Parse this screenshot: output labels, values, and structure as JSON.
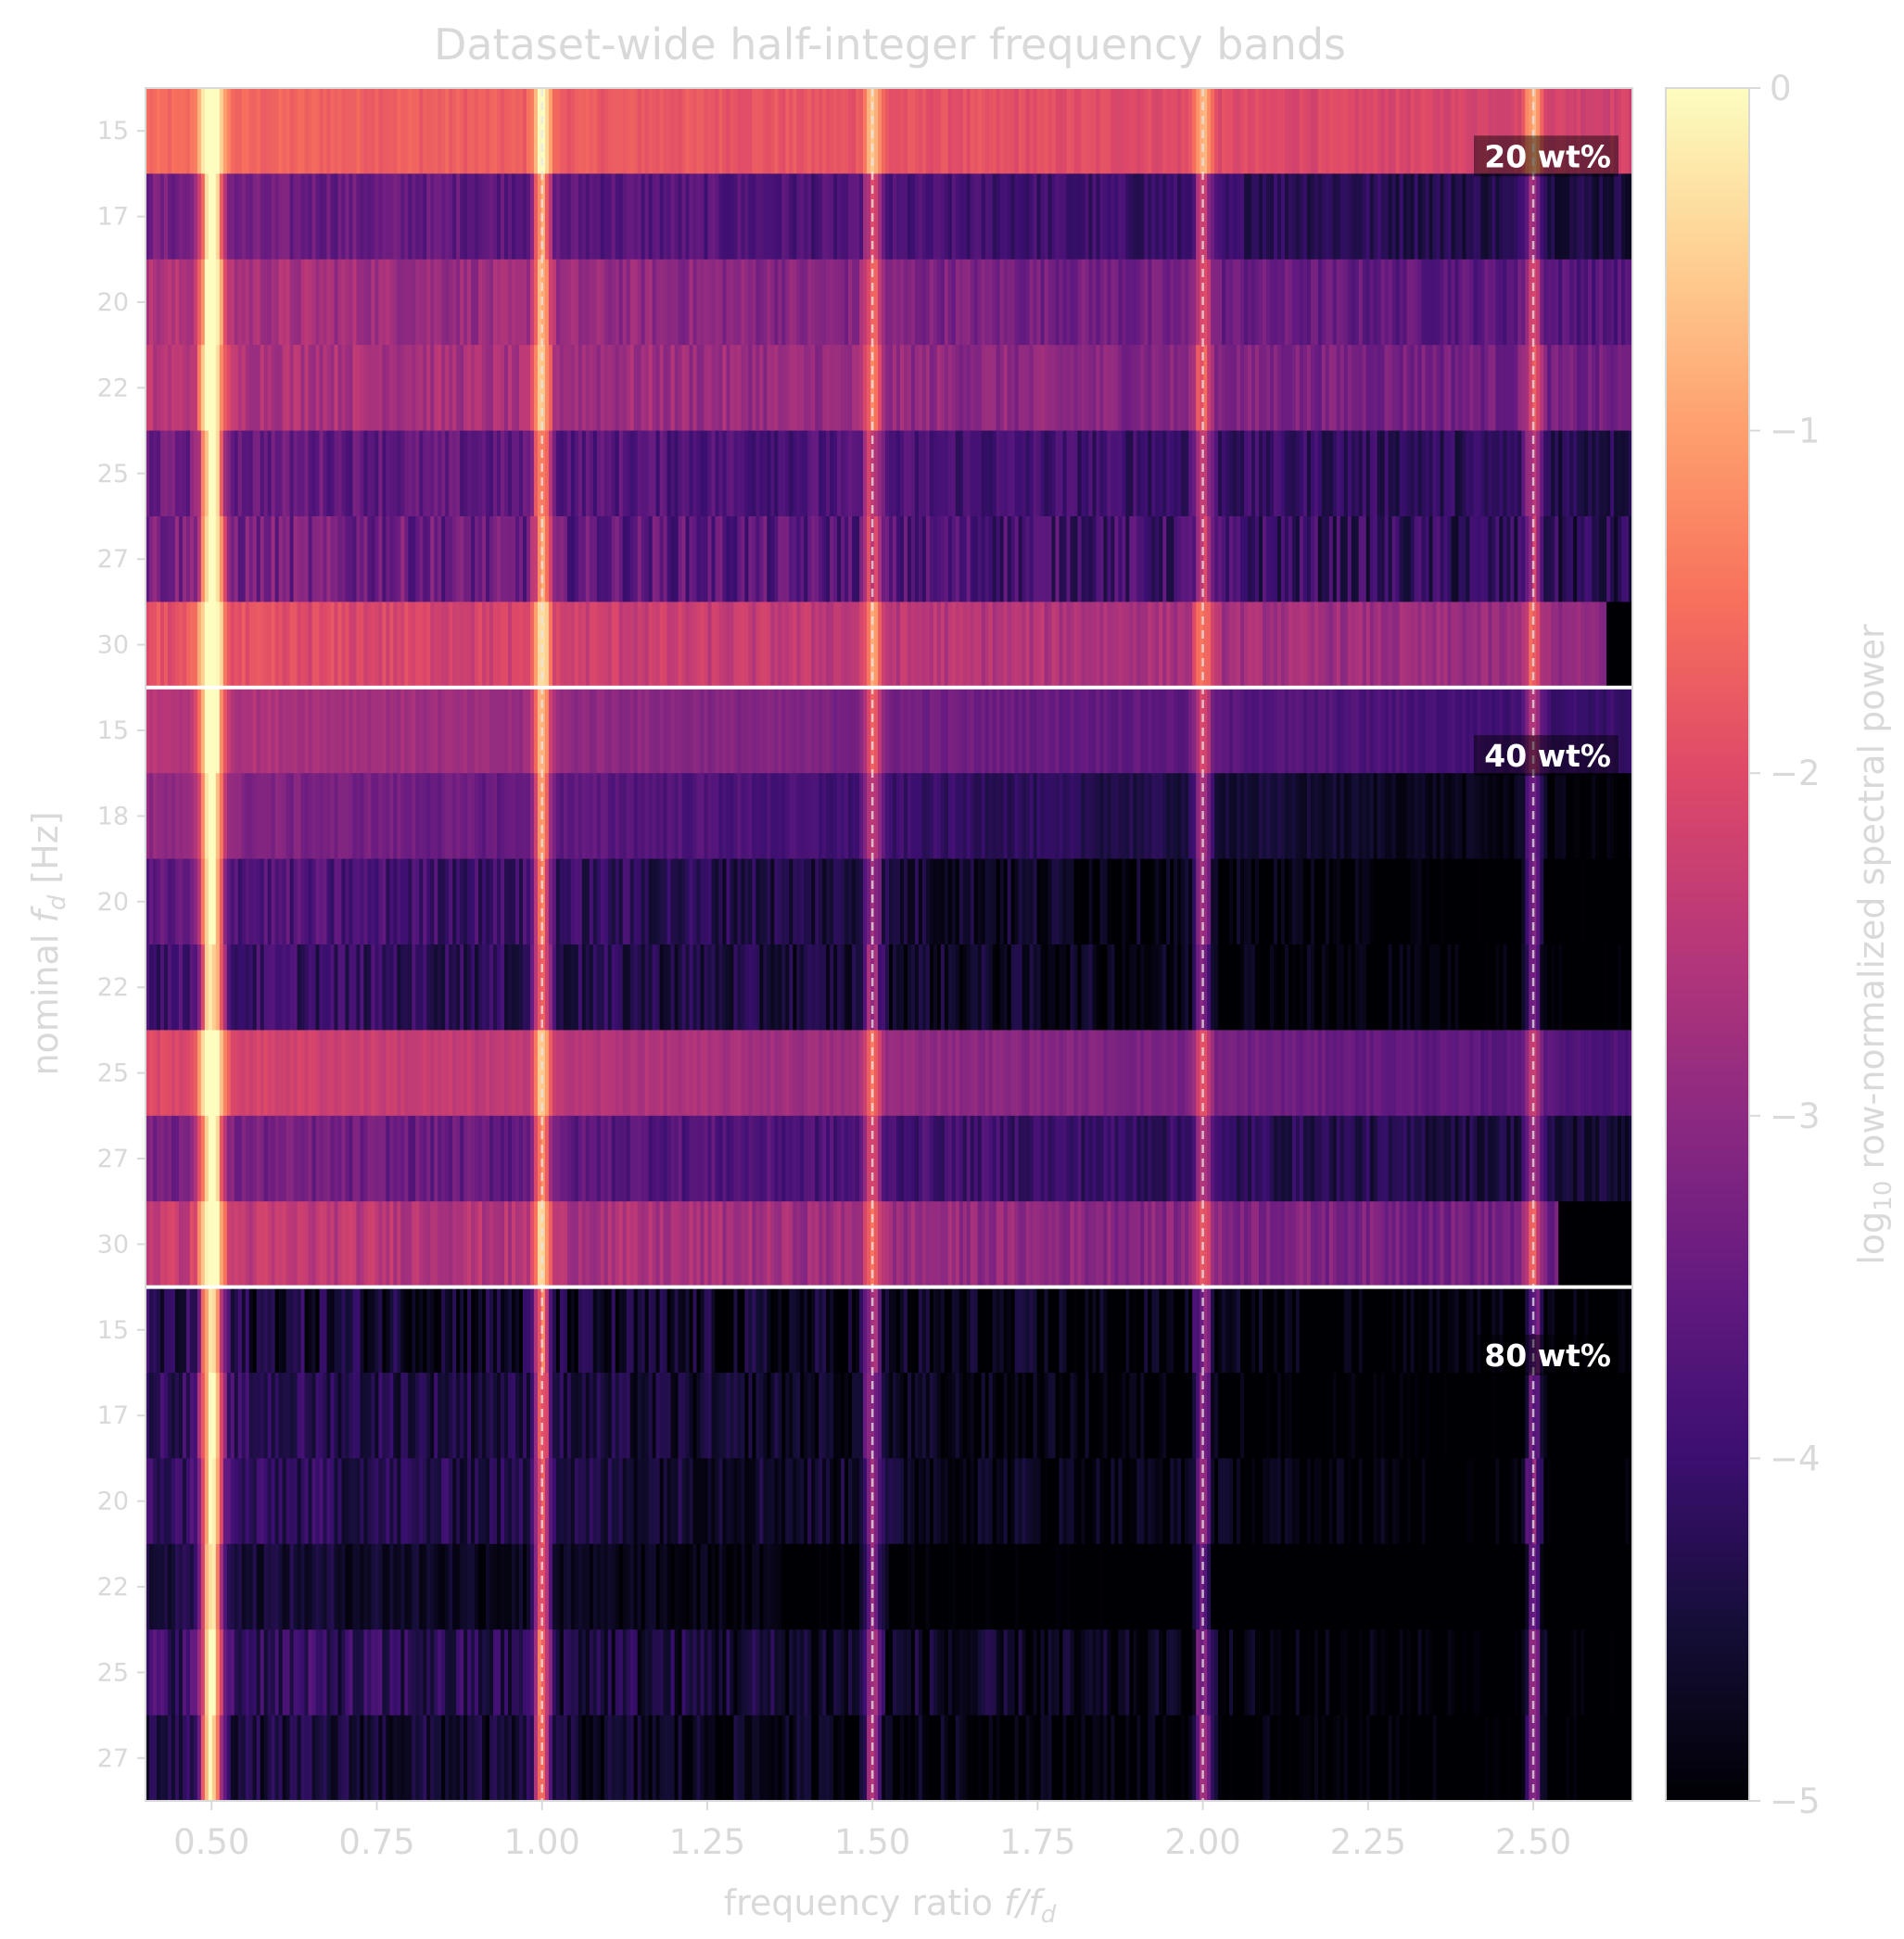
{
  "chart_data": {
    "type": "heatmap",
    "title": "Dataset-wide half-integer frequency bands",
    "xlabel_main": "frequency ratio ",
    "xlabel_italic": "f/f",
    "xlabel_sub": "d",
    "ylabel_main": "nominal ",
    "ylabel_italic": "f",
    "ylabel_sub": "d",
    "ylabel_unit": " [Hz]",
    "colorbar_label_prefix": "log",
    "colorbar_label_sub": "10",
    "colorbar_label_suffix": " row-normalized spectral power",
    "colormap": "magma",
    "xlim": [
      0.4,
      2.65
    ],
    "clim": [
      -5,
      0
    ],
    "x_ticks": [
      0.5,
      0.75,
      1.0,
      1.25,
      1.5,
      1.75,
      2.0,
      2.25,
      2.5
    ],
    "x_tick_labels": [
      "0.50",
      "0.75",
      "1.00",
      "1.25",
      "1.50",
      "1.75",
      "2.00",
      "2.25",
      "2.50"
    ],
    "colorbar_ticks": [
      0,
      -1,
      -2,
      -3,
      -4,
      -5
    ],
    "colorbar_tick_labels": [
      "0",
      "−1",
      "−2",
      "−3",
      "−4",
      "−5"
    ],
    "reference_lines": [
      1.0,
      1.5,
      2.0,
      2.5
    ],
    "groups": [
      {
        "label": "20 wt%",
        "rows": [
          {
            "fd": "15",
            "base": -1.6,
            "decay": 0.25,
            "noise": 0.15,
            "peaks": [
              0.5,
              1.0,
              1.5,
              2.0,
              2.5
            ],
            "cutoff": null
          },
          {
            "fd": "17",
            "base": -3.3,
            "decay": 0.5,
            "noise": 0.3,
            "peaks": [
              0.5,
              1.0,
              1.5,
              2.0,
              2.5
            ],
            "cutoff": null
          },
          {
            "fd": "20",
            "base": -2.6,
            "decay": 0.5,
            "noise": 0.3,
            "peaks": [
              0.5,
              1.0,
              1.5,
              2.0,
              2.5
            ],
            "cutoff": null
          },
          {
            "fd": "22",
            "base": -2.5,
            "decay": 0.4,
            "noise": 0.3,
            "peaks": [
              0.5,
              1.0,
              1.5,
              2.0,
              2.5
            ],
            "cutoff": null
          },
          {
            "fd": "25",
            "base": -3.4,
            "decay": 0.4,
            "noise": 0.35,
            "peaks": [
              0.5,
              1.0,
              1.5,
              2.0,
              2.5
            ],
            "cutoff": null
          },
          {
            "fd": "27",
            "base": -3.2,
            "decay": 0.5,
            "noise": 0.5,
            "peaks": [
              0.5,
              1.0,
              1.5,
              2.0,
              2.5
            ],
            "cutoff": null
          },
          {
            "fd": "30",
            "base": -1.9,
            "decay": 0.5,
            "noise": 0.25,
            "peaks": [
              0.5,
              1.0,
              1.5,
              2.0,
              2.5
            ],
            "cutoff": 2.61
          }
        ]
      },
      {
        "label": "40 wt%",
        "rows": [
          {
            "fd": "15",
            "base": -2.5,
            "decay": 0.7,
            "noise": 0.15,
            "peaks": [
              0.5,
              1.0,
              1.5,
              2.0,
              2.5
            ],
            "cutoff": null
          },
          {
            "fd": "18",
            "base": -3.0,
            "decay": 0.9,
            "noise": 0.2,
            "peaks": [
              0.5,
              1.0,
              1.5,
              2.0,
              2.5
            ],
            "cutoff": null
          },
          {
            "fd": "20",
            "base": -3.6,
            "decay": 0.8,
            "noise": 0.4,
            "peaks": [
              0.5,
              1.0,
              1.5,
              2.0,
              2.5
            ],
            "cutoff": null
          },
          {
            "fd": "22",
            "base": -3.9,
            "decay": 0.6,
            "noise": 0.4,
            "peaks": [
              0.5,
              1.0,
              1.5,
              2.0,
              2.5
            ],
            "cutoff": null
          },
          {
            "fd": "25",
            "base": -2.0,
            "decay": 0.8,
            "noise": 0.15,
            "peaks": [
              0.5,
              1.0,
              1.5,
              2.0,
              2.5
            ],
            "cutoff": null
          },
          {
            "fd": "27",
            "base": -3.2,
            "decay": 0.6,
            "noise": 0.3,
            "peaks": [
              0.5,
              1.0,
              1.5,
              2.0,
              2.5
            ],
            "cutoff": null
          },
          {
            "fd": "30",
            "base": -2.3,
            "decay": 0.5,
            "noise": 0.3,
            "peaks": [
              0.5,
              1.0,
              1.5,
              2.0,
              2.5
            ],
            "cutoff": 2.54
          }
        ]
      },
      {
        "label": "80 wt%",
        "rows": [
          {
            "fd": "15",
            "base": -4.4,
            "decay": 0.4,
            "noise": 0.6,
            "peaks": [
              0.5,
              1.0,
              1.5,
              2.0,
              2.5
            ],
            "cutoff": null
          },
          {
            "fd": "17",
            "base": -4.1,
            "decay": 0.6,
            "noise": 0.4,
            "peaks": [
              0.5,
              1.0,
              1.5,
              2.0,
              2.5
            ],
            "cutoff": null
          },
          {
            "fd": "20",
            "base": -4.1,
            "decay": 0.5,
            "noise": 0.4,
            "peaks": [
              0.5,
              1.0,
              1.5,
              2.0,
              2.5
            ],
            "cutoff": null
          },
          {
            "fd": "22",
            "base": -4.4,
            "decay": 0.6,
            "noise": 0.3,
            "peaks": [
              0.5,
              1.0,
              1.5,
              2.0,
              2.5
            ],
            "cutoff": null
          },
          {
            "fd": "25",
            "base": -4.0,
            "decay": 0.6,
            "noise": 0.5,
            "peaks": [
              0.5,
              1.0,
              1.5,
              2.0,
              2.5
            ],
            "cutoff": null
          },
          {
            "fd": "27",
            "base": -4.4,
            "decay": 0.4,
            "noise": 0.4,
            "peaks": [
              0.5,
              1.0,
              1.5,
              2.0,
              2.5
            ],
            "cutoff": null
          }
        ]
      }
    ]
  }
}
